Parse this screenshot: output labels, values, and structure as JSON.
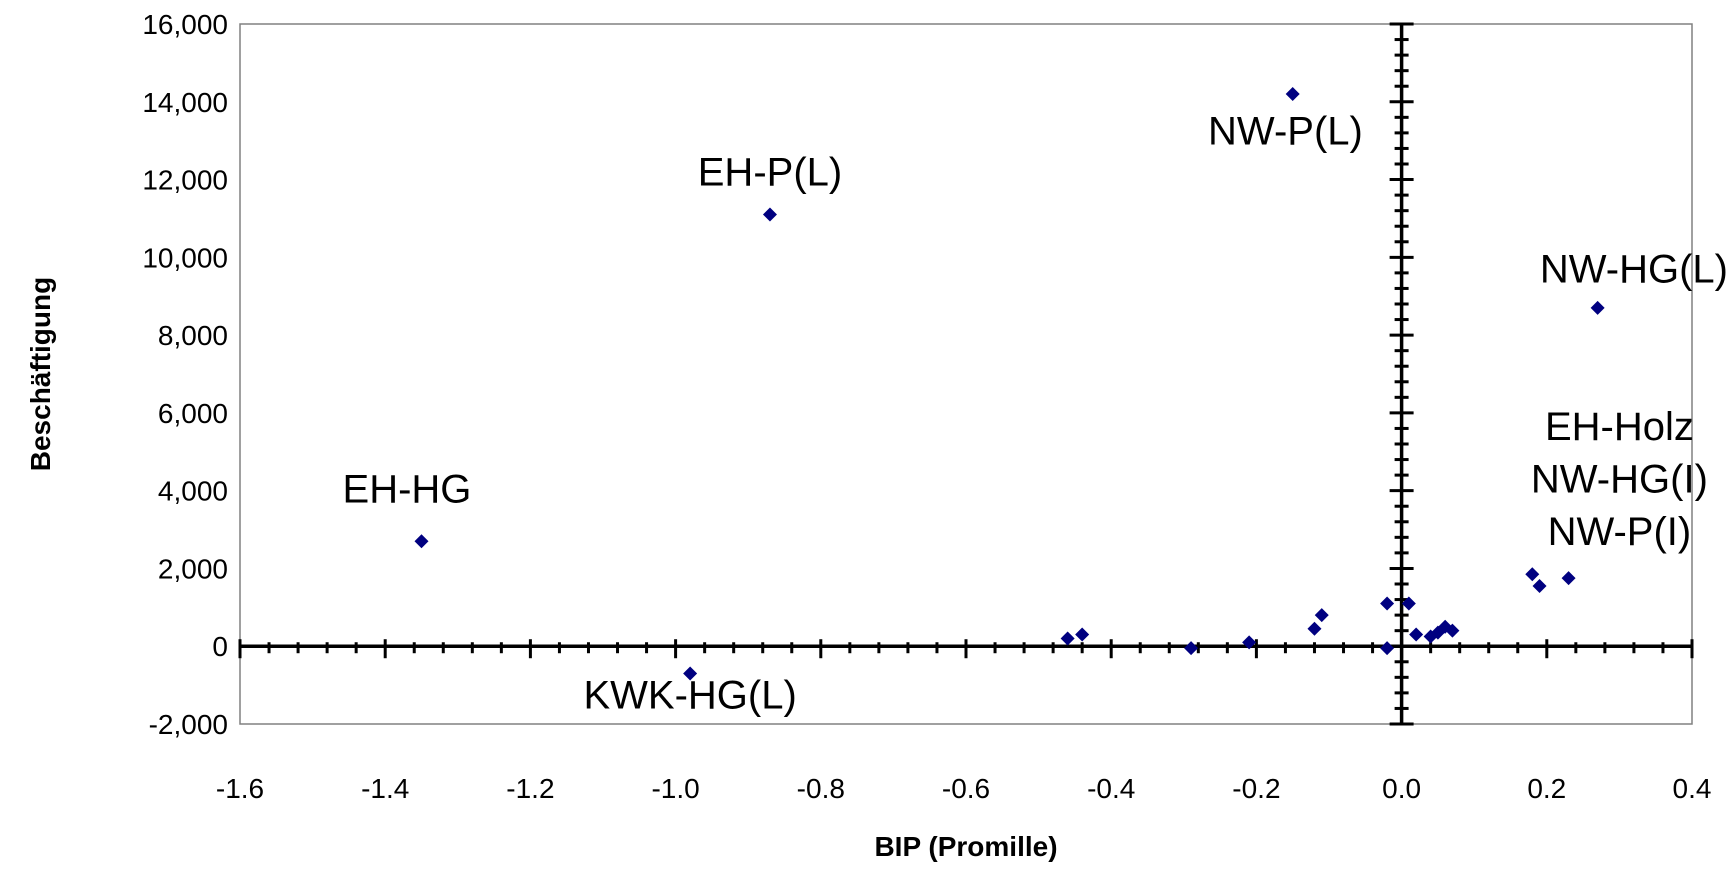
{
  "chart_data": {
    "type": "scatter",
    "xlabel": "BIP (Promille)",
    "ylabel": "Beschäftigung",
    "xlim": [
      -1.6,
      0.4
    ],
    "ylim": [
      -2000,
      16000
    ],
    "x_ticks": [
      "-1.6",
      "-1.4",
      "-1.2",
      "-1.0",
      "-0.8",
      "-0.6",
      "-0.4",
      "-0.2",
      "0.0",
      "0.2",
      "0.4"
    ],
    "y_ticks": [
      "-2,000",
      "0",
      "2,000",
      "4,000",
      "6,000",
      "8,000",
      "10,000",
      "12,000",
      "14,000",
      "16,000"
    ],
    "grid": false,
    "marker_color": "#000080",
    "points": [
      {
        "x": -1.35,
        "y": 2700
      },
      {
        "x": -0.98,
        "y": -700
      },
      {
        "x": -0.87,
        "y": 11100
      },
      {
        "x": -0.46,
        "y": 200
      },
      {
        "x": -0.44,
        "y": 300
      },
      {
        "x": -0.29,
        "y": -50
      },
      {
        "x": -0.21,
        "y": 100
      },
      {
        "x": -0.15,
        "y": 14200
      },
      {
        "x": -0.12,
        "y": 450
      },
      {
        "x": -0.11,
        "y": 800
      },
      {
        "x": -0.02,
        "y": 1100
      },
      {
        "x": -0.02,
        "y": -50
      },
      {
        "x": 0.01,
        "y": 1100
      },
      {
        "x": 0.02,
        "y": 300
      },
      {
        "x": 0.04,
        "y": 250
      },
      {
        "x": 0.05,
        "y": 350
      },
      {
        "x": 0.06,
        "y": 500
      },
      {
        "x": 0.07,
        "y": 400
      },
      {
        "x": 0.18,
        "y": 1850
      },
      {
        "x": 0.19,
        "y": 1550
      },
      {
        "x": 0.23,
        "y": 1750
      },
      {
        "x": 0.27,
        "y": 8700
      }
    ],
    "annotations": [
      {
        "text": "EH-HG",
        "x": -1.37,
        "y": 3700
      },
      {
        "text": "KWK-HG(L)",
        "x": -0.98,
        "y": -1600
      },
      {
        "text": "EH-P(L)",
        "x": -0.87,
        "y": 11850
      },
      {
        "text": "NW-P(L)",
        "x": -0.16,
        "y": 12900
      },
      {
        "text": "NW-HG(L)",
        "x": 0.32,
        "y": 9350
      },
      {
        "text": "EH-Holz",
        "x": 0.3,
        "y": 5300
      },
      {
        "text": "NW-HG(I)",
        "x": 0.3,
        "y": 3950
      },
      {
        "text": "NW-P(I)",
        "x": 0.3,
        "y": 2600
      }
    ]
  }
}
